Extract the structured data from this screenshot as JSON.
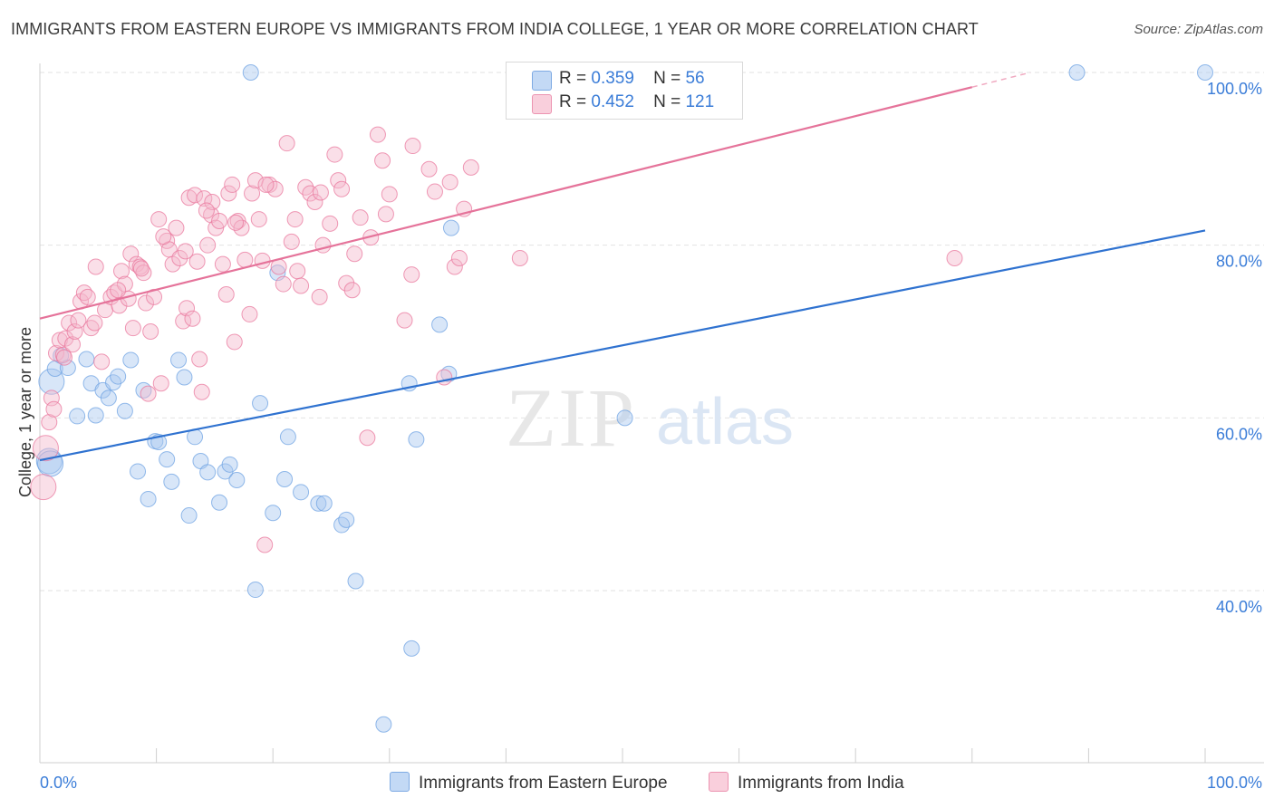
{
  "title": "IMMIGRANTS FROM EASTERN EUROPE VS IMMIGRANTS FROM INDIA COLLEGE, 1 YEAR OR MORE CORRELATION CHART",
  "source": "Source: ZipAtlas.com",
  "watermark": {
    "zip": "ZIP",
    "atlas": "atlas"
  },
  "legend": {
    "r_label": "R =",
    "n_label": "N =",
    "rows": [
      {
        "r": "0.359",
        "n": "56",
        "color": "#a9c8f0"
      },
      {
        "r": "0.452",
        "n": "121",
        "color": "#f5b8cb"
      }
    ]
  },
  "bottom_legend": [
    "Immigrants from Eastern Europe",
    "Immigrants from India"
  ],
  "chart_data": {
    "type": "scatter",
    "title": "IMMIGRANTS FROM EASTERN EUROPE VS IMMIGRANTS FROM INDIA COLLEGE, 1 YEAR OR MORE CORRELATION CHART",
    "xlabel": "",
    "ylabel": "College, 1 year or more",
    "xlim": [
      0,
      100
    ],
    "ylim": [
      20,
      102
    ],
    "x_tick_labels": [
      "0.0%",
      "100.0%"
    ],
    "y_ticks": [
      40,
      60,
      80,
      100
    ],
    "y_tick_labels": [
      "40.0%",
      "60.0%",
      "80.0%",
      "100.0%"
    ],
    "grid": true,
    "legend_position": "top-center",
    "series": [
      {
        "name": "Immigrants from Eastern Europe",
        "color": "#6fa3e3",
        "fill": "#a9c8f0",
        "R": 0.359,
        "N": 56,
        "trend": {
          "x": [
            0,
            100
          ],
          "y": [
            55.1,
            81.7
          ]
        },
        "points": [
          [
            0.8,
            55.0
          ],
          [
            1.0,
            64.2
          ],
          [
            1.3,
            65.7
          ],
          [
            1.8,
            67.2
          ],
          [
            2.4,
            65.8
          ],
          [
            3.2,
            60.2
          ],
          [
            4.0,
            66.8
          ],
          [
            4.4,
            64.0
          ],
          [
            4.8,
            60.3
          ],
          [
            5.4,
            63.2
          ],
          [
            5.9,
            62.3
          ],
          [
            6.3,
            64.1
          ],
          [
            6.7,
            64.8
          ],
          [
            7.3,
            60.8
          ],
          [
            7.8,
            66.7
          ],
          [
            8.4,
            53.8
          ],
          [
            8.9,
            63.2
          ],
          [
            9.3,
            50.6
          ],
          [
            9.9,
            57.3
          ],
          [
            10.2,
            57.2
          ],
          [
            10.9,
            55.2
          ],
          [
            11.3,
            52.6
          ],
          [
            11.9,
            66.7
          ],
          [
            12.4,
            64.7
          ],
          [
            12.8,
            48.7
          ],
          [
            13.3,
            57.8
          ],
          [
            13.8,
            55.0
          ],
          [
            14.4,
            53.7
          ],
          [
            15.4,
            50.2
          ],
          [
            15.9,
            53.8
          ],
          [
            16.3,
            54.6
          ],
          [
            16.9,
            52.8
          ],
          [
            18.1,
            100.0
          ],
          [
            18.5,
            40.1
          ],
          [
            18.9,
            61.7
          ],
          [
            20.0,
            49.0
          ],
          [
            20.4,
            76.8
          ],
          [
            21.0,
            52.9
          ],
          [
            21.3,
            57.8
          ],
          [
            22.4,
            51.4
          ],
          [
            23.9,
            50.1
          ],
          [
            24.4,
            50.1
          ],
          [
            25.9,
            47.6
          ],
          [
            26.3,
            48.2
          ],
          [
            27.1,
            41.1
          ],
          [
            29.5,
            24.5
          ],
          [
            31.7,
            64.0
          ],
          [
            31.9,
            33.3
          ],
          [
            32.3,
            57.5
          ],
          [
            34.3,
            70.8
          ],
          [
            35.1,
            65.1
          ],
          [
            35.3,
            82.0
          ],
          [
            50.2,
            60.0
          ],
          [
            89.0,
            100.0
          ],
          [
            100.0,
            100.0
          ],
          [
            0.9,
            54.7
          ]
        ]
      },
      {
        "name": "Immigrants from India",
        "color": "#e9789d",
        "fill": "#f5b8cb",
        "R": 0.452,
        "N": 121,
        "trend": {
          "x": [
            0,
            80
          ],
          "y": [
            71.5,
            98.3
          ]
        },
        "trend_dashed": {
          "x": [
            80,
            85
          ],
          "y": [
            98.3,
            100.0
          ]
        },
        "points": [
          [
            0.3,
            52.0
          ],
          [
            0.5,
            56.5
          ],
          [
            0.8,
            59.5
          ],
          [
            1.0,
            62.3
          ],
          [
            1.2,
            61.0
          ],
          [
            1.4,
            67.5
          ],
          [
            1.7,
            69.0
          ],
          [
            2.0,
            67.3
          ],
          [
            2.2,
            69.2
          ],
          [
            2.5,
            71.0
          ],
          [
            2.8,
            68.5
          ],
          [
            3.0,
            70.0
          ],
          [
            3.3,
            71.3
          ],
          [
            3.5,
            73.5
          ],
          [
            3.8,
            74.5
          ],
          [
            4.1,
            74.0
          ],
          [
            4.4,
            70.4
          ],
          [
            4.7,
            71.0
          ],
          [
            4.8,
            77.5
          ],
          [
            5.3,
            66.5
          ],
          [
            5.6,
            72.5
          ],
          [
            6.1,
            74.0
          ],
          [
            6.4,
            74.5
          ],
          [
            6.8,
            73.0
          ],
          [
            7.0,
            77.0
          ],
          [
            7.3,
            75.5
          ],
          [
            7.6,
            73.8
          ],
          [
            7.8,
            79.0
          ],
          [
            8.0,
            70.4
          ],
          [
            8.3,
            77.8
          ],
          [
            8.6,
            77.5
          ],
          [
            8.9,
            76.8
          ],
          [
            9.1,
            73.3
          ],
          [
            9.3,
            62.8
          ],
          [
            9.5,
            70.0
          ],
          [
            9.8,
            74.0
          ],
          [
            10.2,
            83.0
          ],
          [
            10.4,
            64.0
          ],
          [
            10.9,
            80.5
          ],
          [
            11.1,
            79.5
          ],
          [
            11.4,
            77.8
          ],
          [
            11.7,
            82.0
          ],
          [
            12.0,
            78.5
          ],
          [
            12.3,
            71.2
          ],
          [
            12.6,
            72.7
          ],
          [
            12.8,
            85.5
          ],
          [
            13.1,
            71.5
          ],
          [
            13.3,
            85.8
          ],
          [
            13.5,
            78.1
          ],
          [
            13.7,
            66.8
          ],
          [
            13.9,
            63.0
          ],
          [
            14.1,
            85.4
          ],
          [
            14.4,
            80.0
          ],
          [
            14.7,
            83.5
          ],
          [
            14.8,
            85.0
          ],
          [
            15.1,
            82.0
          ],
          [
            15.4,
            82.8
          ],
          [
            15.7,
            77.8
          ],
          [
            16.0,
            74.3
          ],
          [
            16.2,
            86.0
          ],
          [
            16.5,
            87.0
          ],
          [
            16.7,
            68.8
          ],
          [
            17.0,
            82.8
          ],
          [
            17.3,
            82.0
          ],
          [
            17.6,
            78.3
          ],
          [
            18.0,
            72.0
          ],
          [
            18.2,
            86.0
          ],
          [
            18.5,
            87.5
          ],
          [
            18.8,
            83.0
          ],
          [
            19.1,
            78.2
          ],
          [
            19.3,
            45.3
          ],
          [
            19.7,
            87.0
          ],
          [
            20.2,
            86.5
          ],
          [
            20.5,
            77.5
          ],
          [
            20.9,
            75.5
          ],
          [
            21.2,
            91.8
          ],
          [
            21.6,
            80.4
          ],
          [
            22.1,
            77.0
          ],
          [
            22.4,
            75.3
          ],
          [
            22.8,
            86.7
          ],
          [
            23.2,
            86.0
          ],
          [
            23.6,
            85.0
          ],
          [
            24.0,
            74.0
          ],
          [
            24.3,
            80.0
          ],
          [
            24.9,
            82.5
          ],
          [
            25.3,
            90.5
          ],
          [
            25.6,
            87.5
          ],
          [
            25.9,
            86.5
          ],
          [
            26.3,
            75.6
          ],
          [
            27.0,
            79.0
          ],
          [
            27.5,
            83.2
          ],
          [
            28.1,
            57.7
          ],
          [
            28.4,
            80.9
          ],
          [
            29.0,
            92.8
          ],
          [
            29.4,
            89.8
          ],
          [
            30.0,
            85.9
          ],
          [
            31.3,
            71.3
          ],
          [
            32.0,
            91.5
          ],
          [
            33.4,
            88.8
          ],
          [
            33.9,
            86.2
          ],
          [
            34.7,
            64.7
          ],
          [
            35.2,
            87.3
          ],
          [
            35.6,
            77.5
          ],
          [
            36.0,
            78.5
          ],
          [
            36.4,
            84.2
          ],
          [
            37.0,
            89.0
          ],
          [
            41.2,
            78.5
          ],
          [
            78.5,
            78.5
          ],
          [
            2.1,
            67.0
          ],
          [
            6.7,
            74.8
          ],
          [
            8.7,
            77.3
          ],
          [
            10.6,
            81.0
          ],
          [
            12.5,
            79.3
          ],
          [
            14.3,
            84.0
          ],
          [
            16.8,
            82.6
          ],
          [
            19.4,
            87.0
          ],
          [
            21.9,
            83.0
          ],
          [
            24.1,
            86.1
          ],
          [
            26.8,
            74.8
          ],
          [
            29.7,
            83.6
          ],
          [
            31.9,
            76.6
          ]
        ]
      }
    ]
  }
}
